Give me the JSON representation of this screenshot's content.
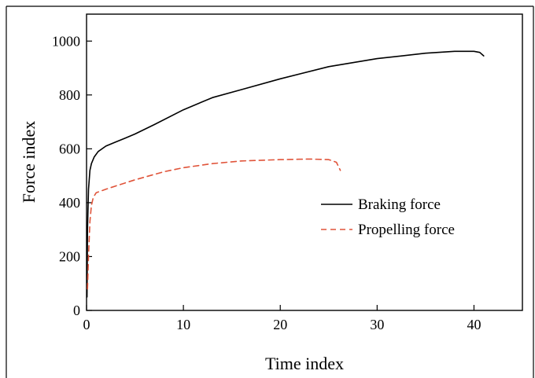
{
  "chart_data": {
    "type": "line",
    "title": "",
    "xlabel": "Time index",
    "ylabel": "Force index",
    "xlim": [
      0,
      45
    ],
    "ylim": [
      0,
      1100
    ],
    "xticks": [
      0,
      10,
      20,
      30,
      40
    ],
    "yticks": [
      0,
      200,
      400,
      600,
      800,
      1000
    ],
    "xtick_labels": [
      "0",
      "10",
      "20",
      "30",
      "40"
    ],
    "ytick_labels": [
      "0",
      "200",
      "400",
      "600",
      "800",
      "1000"
    ],
    "grid": false,
    "legend": "center-right",
    "series": [
      {
        "name": "Braking force",
        "color": "#000000",
        "style": "solid",
        "x": [
          0.05,
          0.1,
          0.2,
          0.35,
          0.5,
          0.8,
          1.2,
          2,
          3,
          4,
          5,
          7,
          10,
          13,
          16,
          20,
          25,
          30,
          35,
          38,
          40,
          40.6,
          41
        ],
        "y": [
          50,
          300,
          450,
          520,
          545,
          570,
          590,
          610,
          625,
          640,
          655,
          690,
          745,
          790,
          820,
          860,
          905,
          935,
          955,
          962,
          962,
          958,
          945
        ]
      },
      {
        "name": "Propelling force",
        "color": "#e0543a",
        "style": "dashed",
        "x": [
          0.1,
          0.2,
          0.35,
          0.5,
          0.7,
          1,
          2,
          3,
          5,
          8,
          10,
          13,
          16,
          20,
          23,
          25,
          25.8,
          26.2
        ],
        "y": [
          80,
          200,
          330,
          390,
          420,
          437,
          450,
          462,
          485,
          515,
          530,
          545,
          555,
          560,
          562,
          560,
          550,
          520
        ]
      }
    ]
  }
}
